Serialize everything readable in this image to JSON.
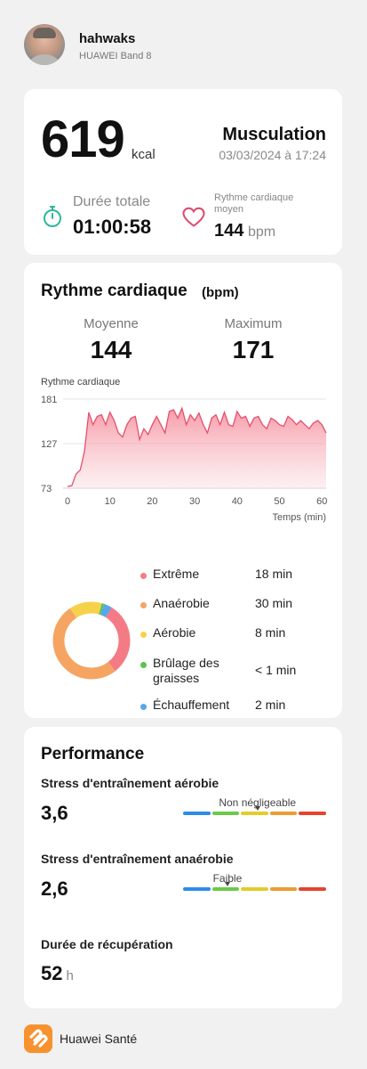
{
  "header": {
    "username": "hahwaks",
    "device": "HUAWEI Band 8"
  },
  "summary": {
    "calories": "619",
    "calories_unit": "kcal",
    "activity": "Musculation",
    "datetime": "03/03/2024 à 17:24",
    "duration_label": "Durée totale",
    "duration_value": "01:00:58",
    "avg_hr_label": "Rythme cardiaque moyen",
    "avg_hr_value": "144",
    "avg_hr_unit": "bpm",
    "icons": [
      "stopwatch-icon",
      "heart-icon"
    ],
    "colors": {
      "stopwatch": "#2bb89a",
      "heart": "#e1466b"
    }
  },
  "heart_rate": {
    "title": "Rythme cardiaque",
    "unit": "(bpm)",
    "average_label": "Moyenne",
    "average_value": "144",
    "max_label": "Maximum",
    "max_value": "171",
    "chart_title": "Rythme cardiaque"
  },
  "chart_data": {
    "type": "area",
    "title": "Rythme cardiaque",
    "xlabel": "Temps (min)",
    "ylabel": "",
    "xlim": [
      0,
      60
    ],
    "ylim": [
      73,
      181
    ],
    "x_ticks": [
      0,
      10,
      20,
      30,
      40,
      50,
      60
    ],
    "y_ticks": [
      73,
      127,
      181
    ],
    "color": "#e5506b",
    "x": [
      0,
      1,
      2,
      3,
      4,
      5,
      6,
      7,
      8,
      9,
      10,
      11,
      12,
      13,
      14,
      15,
      16,
      17,
      18,
      19,
      20,
      21,
      22,
      23,
      24,
      25,
      26,
      27,
      28,
      29,
      30,
      31,
      32,
      33,
      34,
      35,
      36,
      37,
      38,
      39,
      40,
      41,
      42,
      43,
      44,
      45,
      46,
      47,
      48,
      49,
      50,
      51,
      52,
      53,
      54,
      55,
      56,
      57,
      58,
      59,
      60,
      61
    ],
    "values": [
      75,
      76,
      90,
      95,
      118,
      165,
      150,
      160,
      162,
      150,
      165,
      155,
      140,
      135,
      150,
      158,
      160,
      132,
      145,
      138,
      150,
      160,
      150,
      140,
      166,
      168,
      158,
      170,
      150,
      162,
      155,
      164,
      150,
      140,
      158,
      162,
      150,
      165,
      150,
      148,
      166,
      158,
      160,
      148,
      158,
      160,
      150,
      145,
      158,
      155,
      150,
      148,
      160,
      156,
      150,
      155,
      150,
      145,
      152,
      155,
      150,
      140
    ]
  },
  "zones": {
    "items": [
      {
        "name": "Extrême",
        "duration": "18 min",
        "minutes": 18,
        "color": "#f47b85"
      },
      {
        "name": "Anaérobie",
        "duration": "30 min",
        "minutes": 30,
        "color": "#f5a462"
      },
      {
        "name": "Aérobie",
        "duration": "8 min",
        "minutes": 8,
        "color": "#f6d24b"
      },
      {
        "name": "Brûlage des graisses",
        "duration": "< 1 min",
        "minutes": 0.6,
        "color": "#5cc34f"
      },
      {
        "name": "Échauffement",
        "duration": "2 min",
        "minutes": 2,
        "color": "#58a7e8"
      }
    ]
  },
  "performance": {
    "title": "Performance",
    "aerobic_label": "Stress d'entraînement aérobie",
    "aerobic_value": "3,6",
    "aerobic_level": "Non négligeable",
    "anaerobic_label": "Stress d'entraînement anaérobie",
    "anaerobic_value": "2,6",
    "anaerobic_level": "Faible",
    "recovery_label": "Durée de récupération",
    "recovery_value": "52",
    "recovery_unit": "h",
    "scale_colors": [
      "#2e8be6",
      "#6cc94a",
      "#e3cc2b",
      "#ee9a34",
      "#e8432b"
    ]
  },
  "footer": {
    "app_name": "Huawei Santé"
  }
}
